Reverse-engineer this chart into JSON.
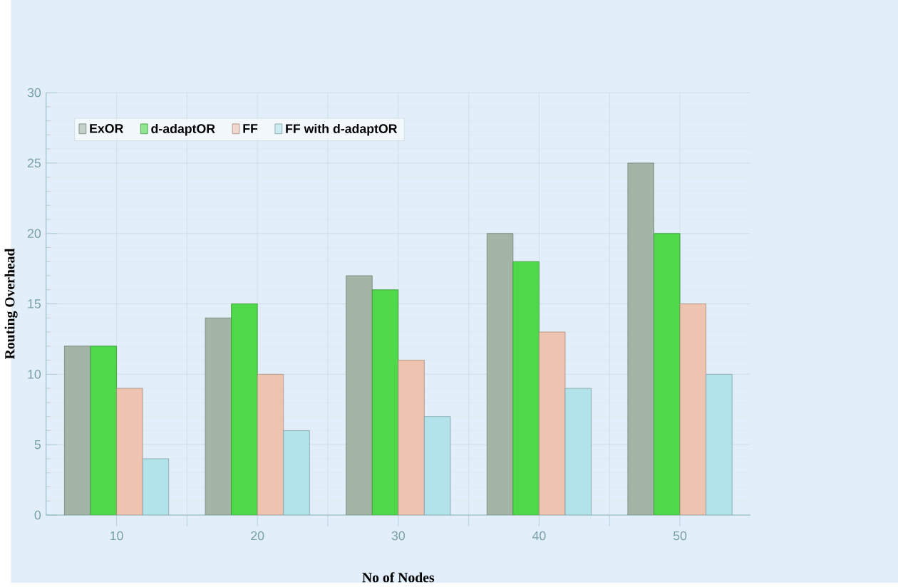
{
  "chart_data": {
    "type": "bar",
    "xlabel": "No of Nodes",
    "ylabel": "Routing Overhead",
    "categories": [
      "10",
      "20",
      "30",
      "40",
      "50"
    ],
    "series": [
      {
        "name": "ExOR",
        "color": "#a3b5a6",
        "values": [
          12,
          14,
          17,
          20,
          25
        ]
      },
      {
        "name": "d-adaptOR",
        "color": "#4fd84a",
        "values": [
          12,
          15,
          16,
          18,
          20
        ]
      },
      {
        "name": "FF",
        "color": "#eec3b0",
        "values": [
          9,
          10,
          11,
          13,
          15
        ]
      },
      {
        "name": "FF with d-adaptOR",
        "color": "#b3e3ea",
        "values": [
          4,
          6,
          7,
          9,
          10
        ]
      }
    ],
    "ylim": [
      0,
      30
    ],
    "yticks": [
      0,
      5,
      10,
      15,
      20,
      25,
      30
    ],
    "grid": true,
    "legend": "top left"
  }
}
